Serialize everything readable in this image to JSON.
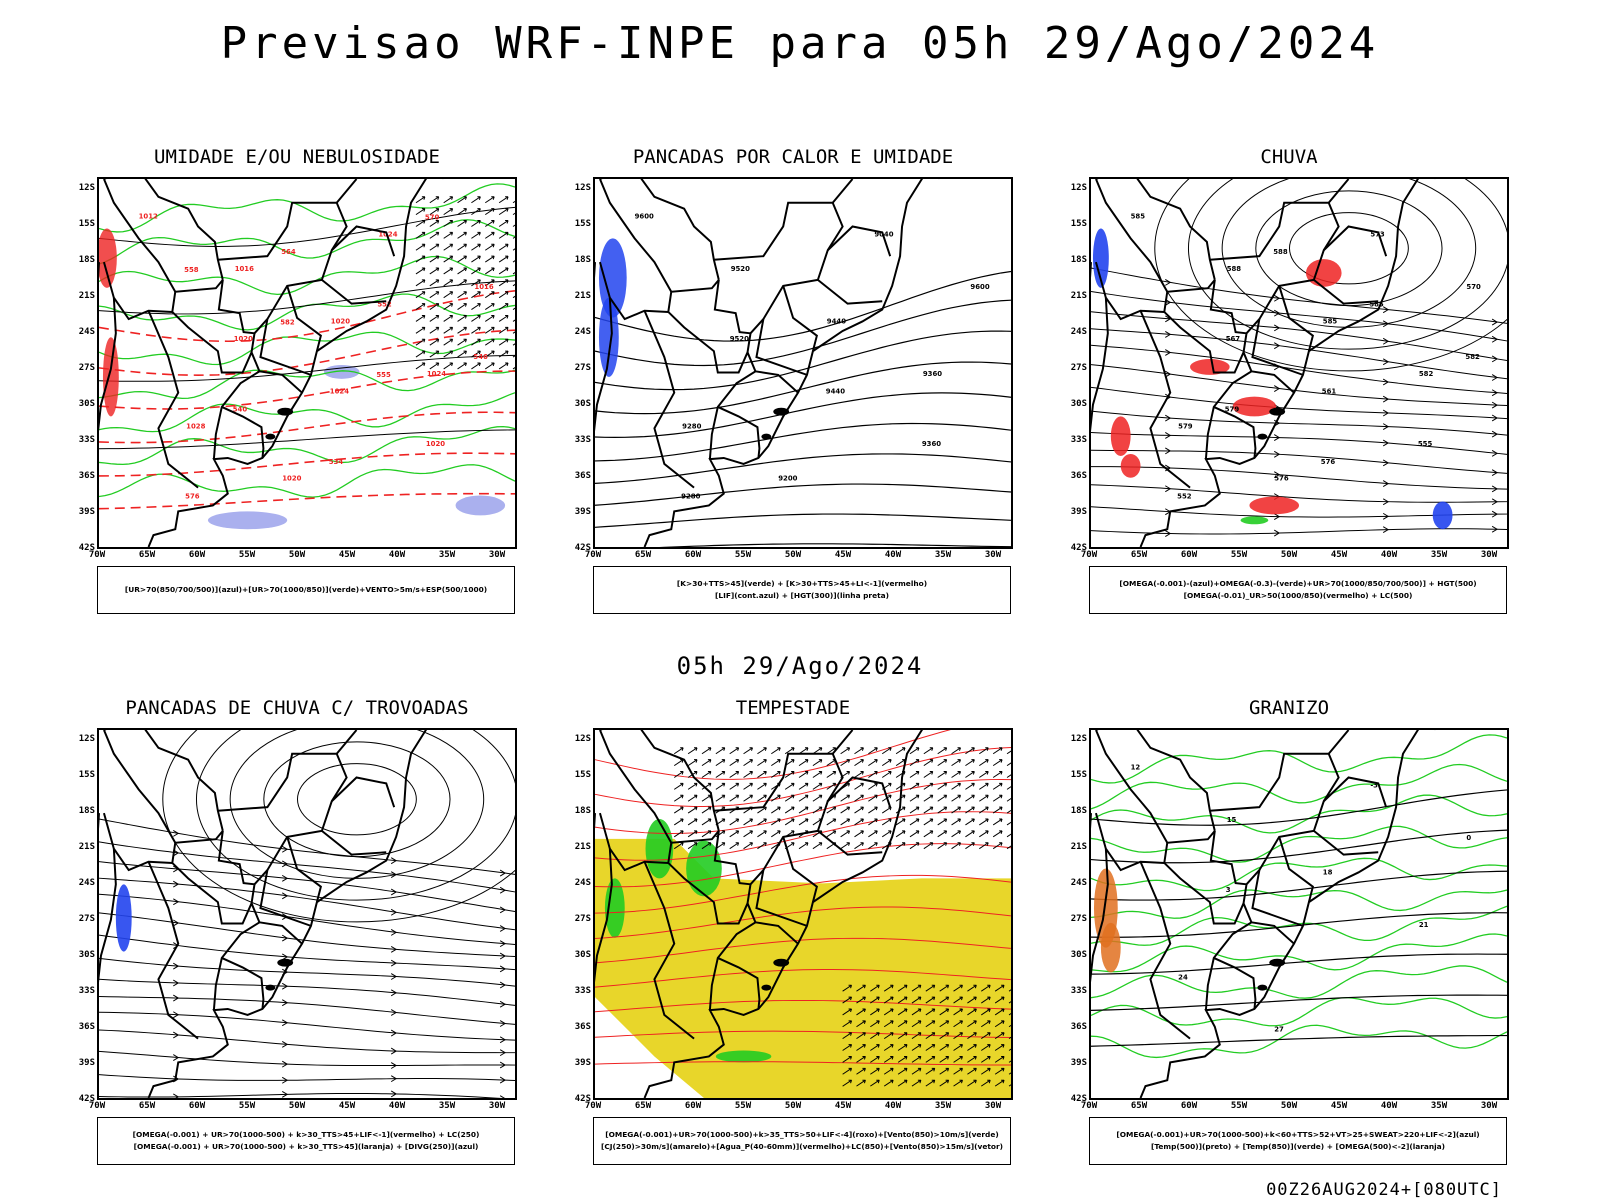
{
  "header": {
    "title": "Previsao WRF-INPE  para 05h 29/Ago/2024",
    "mid_title": "05h 29/Ago/2024",
    "run_label": "00Z26AUG2024+[080UTC]"
  },
  "axes": {
    "lat_labels": [
      "12S",
      "15S",
      "18S",
      "21S",
      "24S",
      "27S",
      "30S",
      "33S",
      "36S",
      "39S",
      "42S"
    ],
    "lon_labels": [
      "70W",
      "65W",
      "60W",
      "55W",
      "50W",
      "45W",
      "40W",
      "35W",
      "30W"
    ]
  },
  "panels": [
    {
      "title": "UMIDADE E/OU NEBULOSIDADE",
      "legend": [
        "[UR>70(850/700/500)](azul)+[UR>70(1000/850)](verde)+VENTO>5m/s+ESP(500/1000)"
      ],
      "labels": [
        "1012",
        "1016",
        "1020",
        "1024",
        "1028",
        "1020",
        "1024",
        "1016",
        "1020",
        "1024",
        "1020",
        "576",
        "564",
        "552",
        "546",
        "540",
        "534",
        "570",
        "558",
        "582",
        "555"
      ]
    },
    {
      "title": "PANCADAS POR CALOR E UMIDADE",
      "legend": [
        "[K>30+TTS>45](verde) + [K>30+TTS>45+LI<-1](vermelho)",
        "[LIF](cont.azul) + [HGT(300)](linha preta)"
      ],
      "labels": [
        "9600",
        "9520",
        "9440",
        "9360",
        "9280",
        "9200",
        "9040",
        "9600",
        "9520",
        "9440",
        "9360",
        "9280"
      ]
    },
    {
      "title": "CHUVA",
      "legend": [
        "[OMEGA(-0.001)-(azul)+OMEGA(-0.3)-(verde)+UR>70(1000/850/700/500)] + HGT(500)",
        "[OMEGA(-0.01)_UR>50(1000/850)(vermelho) + LC(500)"
      ],
      "labels": [
        "585",
        "588",
        "585",
        "582",
        "579",
        "576",
        "573",
        "570",
        "567",
        "561",
        "555",
        "552",
        "588",
        "585",
        "582",
        "579",
        "576"
      ]
    },
    {
      "title": "PANCADAS DE CHUVA C/ TROVOADAS",
      "legend": [
        "[OMEGA(-0.001) + UR>70(1000-500) + k>30_TTS>45+LIF<-1](vermelho) + LC(250)",
        "[OMEGA(-0.001) + UR>70(1000-500) + k>30_TTS>45](laranja) + [DIVG(250)](azul)"
      ],
      "labels": []
    },
    {
      "title": "TEMPESTADE",
      "legend": [
        "[OMEGA(-0.001)+UR>70(1000-500)+k>35_TTS>50+LIF<-4](roxo)+[Vento(850)>10m/s](verde)",
        "[CJ(250)>30m/s](amarelo)+[Agua_P(40-60mm)](vermelho)+LC(850)+[Vento(850)>15m/s](vetor)"
      ],
      "labels": []
    },
    {
      "title": "GRANIZO",
      "legend": [
        "[OMEGA(-0.001)+UR>70(1000-500)+k<60+TTS>52+VT>25+SWEAT>220+LIF<-2](azul)",
        "[Temp(500)](preto) + [Temp(850)](verde) + [OMEGA(500)<-2](laranja)"
      ],
      "labels": [
        "12",
        "15",
        "18",
        "21",
        "24",
        "27",
        "-3",
        "0",
        "3"
      ]
    }
  ],
  "colors": {
    "red": "#ee2222",
    "green": "#22cc22",
    "blue": "#2244ee",
    "lavender": "#aab0ee",
    "yellow": "#e8d62a",
    "orange": "#e07020",
    "black": "#000000"
  }
}
